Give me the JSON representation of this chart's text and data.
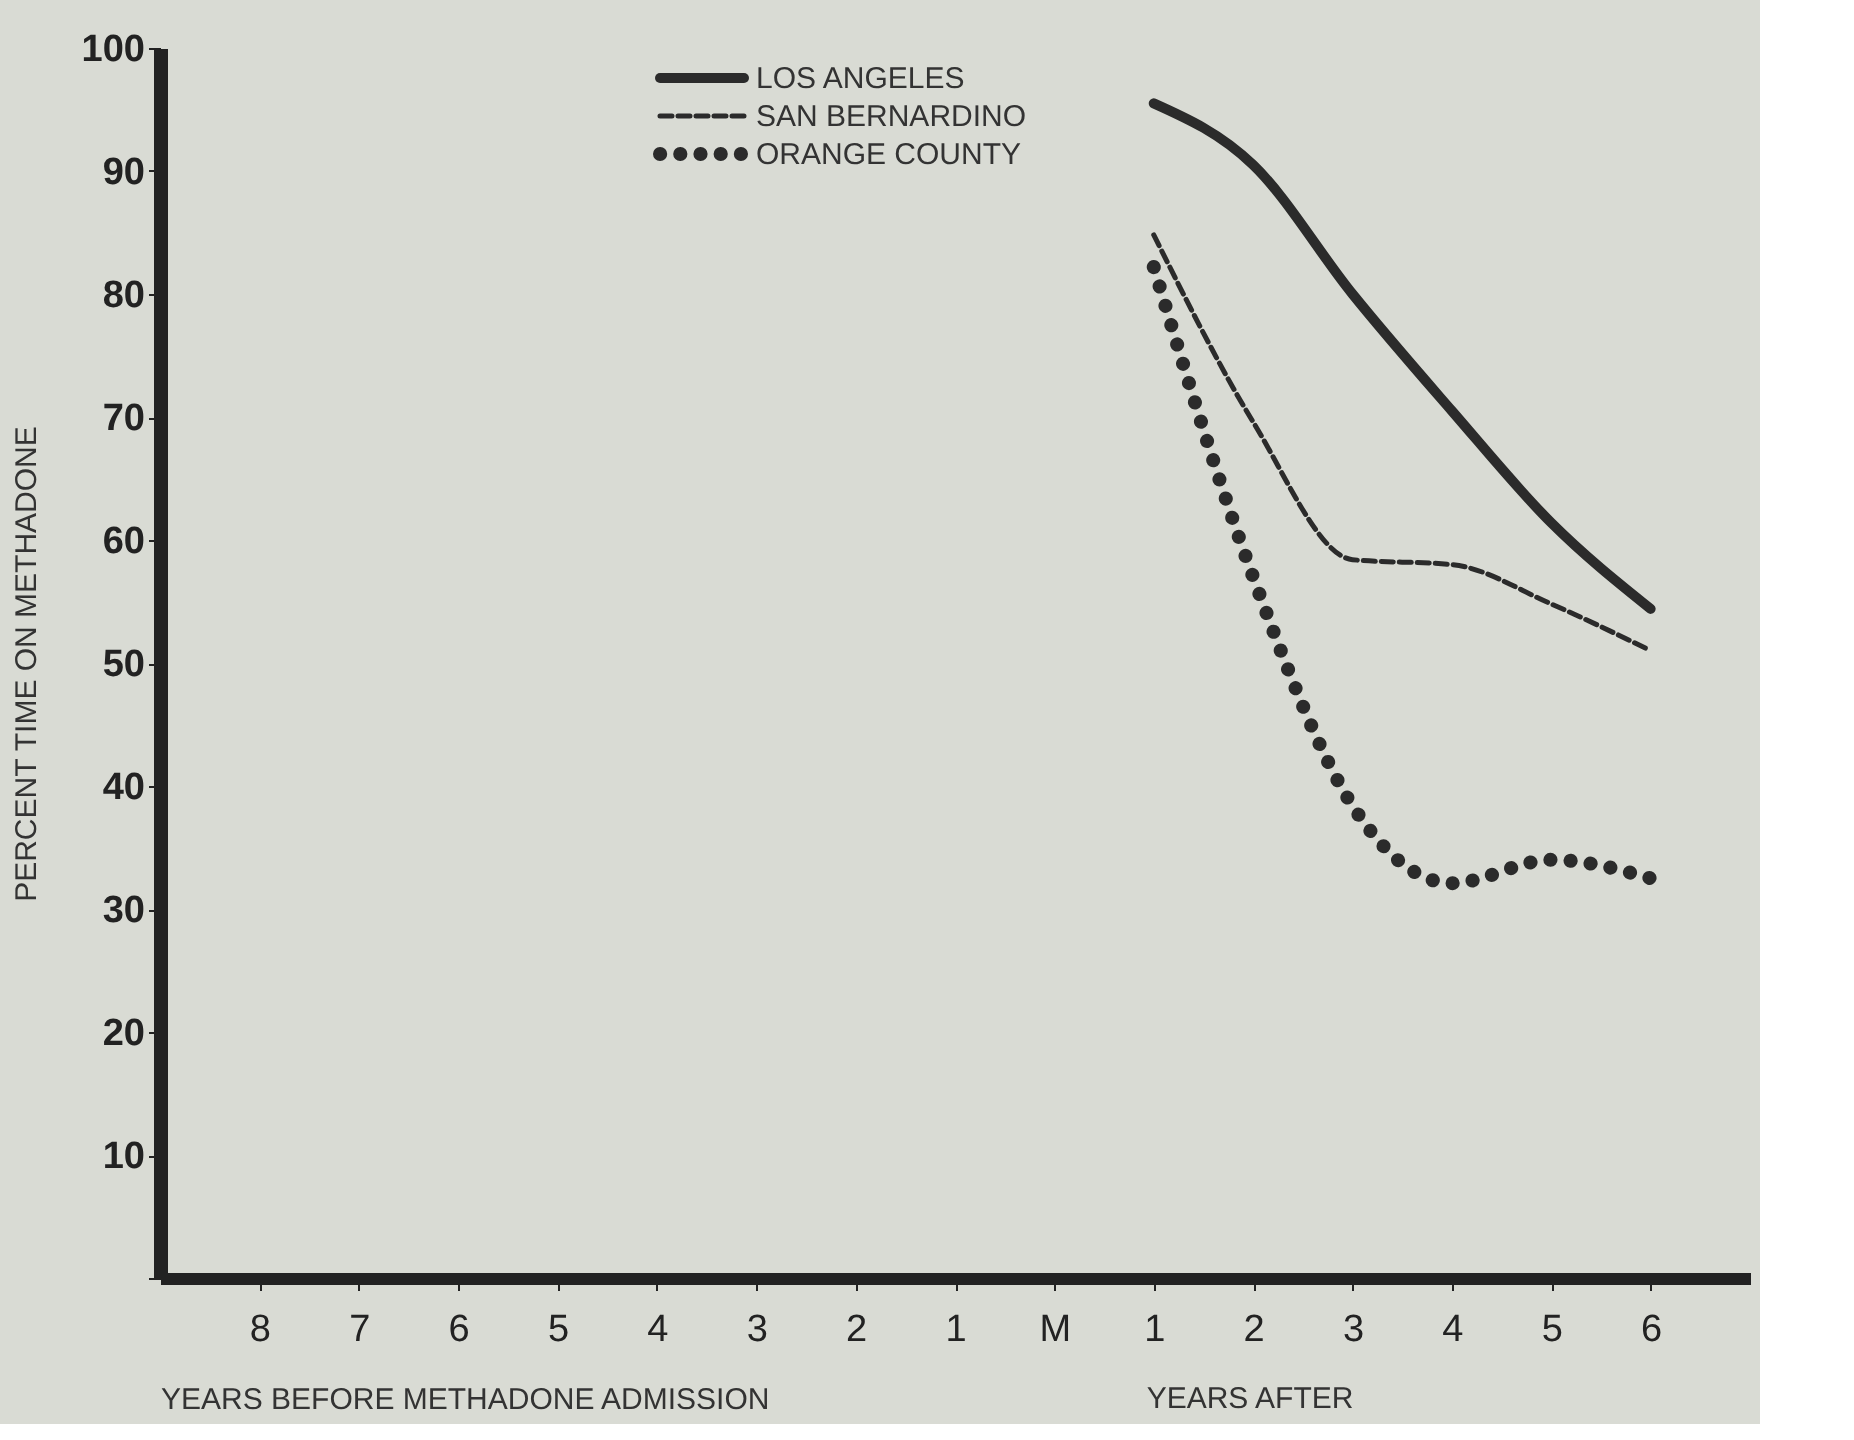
{
  "chart_data": {
    "type": "line",
    "ylabel": "PERCENT TIME ON METHADONE",
    "xlabel": "YEARS BEFORE METHADONE ADMISSION",
    "annotations": [
      "YEARS AFTER"
    ],
    "categories": [
      "8",
      "7",
      "6",
      "5",
      "4",
      "3",
      "2",
      "1",
      "M",
      "1",
      "2",
      "3",
      "4",
      "5",
      "6"
    ],
    "series": [
      {
        "name": "LOS ANGELES",
        "color": "#2b2b2b",
        "line_style": "solid",
        "values": [
          null,
          null,
          null,
          null,
          null,
          null,
          null,
          null,
          null,
          95.5,
          90.5,
          80,
          70.5,
          61.4,
          54.4
        ]
      },
      {
        "name": "SAN BERNARDINO",
        "color": "#2b2b2b",
        "line_style": "dashed",
        "values": [
          null,
          null,
          null,
          null,
          null,
          null,
          null,
          null,
          null,
          84.8,
          69.6,
          58.4,
          58,
          54.8,
          51
        ]
      },
      {
        "name": "ORANGE COUNTY",
        "color": "#2b2b2b",
        "line_style": "dotted",
        "values": [
          null,
          null,
          null,
          null,
          null,
          null,
          null,
          null,
          null,
          82.2,
          57,
          38.4,
          32.1,
          34,
          32.5
        ]
      }
    ],
    "ylim": [
      0,
      100
    ],
    "yticks": [
      {
        "value": 0,
        "label": null
      },
      10,
      20,
      30,
      40,
      50,
      60,
      70,
      80,
      90,
      100
    ],
    "marker": "none",
    "grid": false,
    "legend": "top left"
  }
}
